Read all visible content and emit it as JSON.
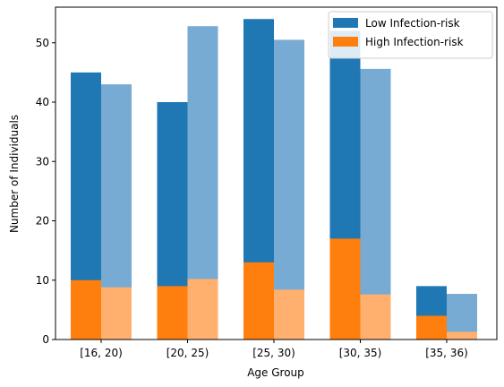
{
  "chart_data": {
    "type": "bar",
    "categories": [
      "[16, 20)",
      "[20, 25)",
      "[25, 30)",
      "[30, 35)",
      "[35, 36)"
    ],
    "xlabel": "Age Group",
    "ylabel": "Number of Individuals",
    "ylim": [
      0,
      56
    ],
    "yticks": [
      0,
      10,
      20,
      30,
      40,
      50
    ],
    "grid": false,
    "legend_position": "top-right",
    "legend": [
      {
        "label": "Low Infection-risk",
        "color": "#1f77b4"
      },
      {
        "label": "High Infection-risk",
        "color": "#ff7f0e"
      }
    ],
    "groups": [
      {
        "position": "left",
        "low_total": [
          45,
          40,
          54,
          52,
          9
        ],
        "high": [
          10,
          9,
          13,
          17,
          4
        ],
        "low_color": "#1f77b4",
        "high_color": "#ff7f0e"
      },
      {
        "position": "right",
        "low_total": [
          43,
          52.8,
          50.5,
          45.6,
          7.7
        ],
        "high": [
          8.8,
          10.2,
          8.4,
          7.6,
          1.3
        ],
        "low_color": "#77abd3",
        "high_color": "#ffb06f"
      }
    ]
  }
}
